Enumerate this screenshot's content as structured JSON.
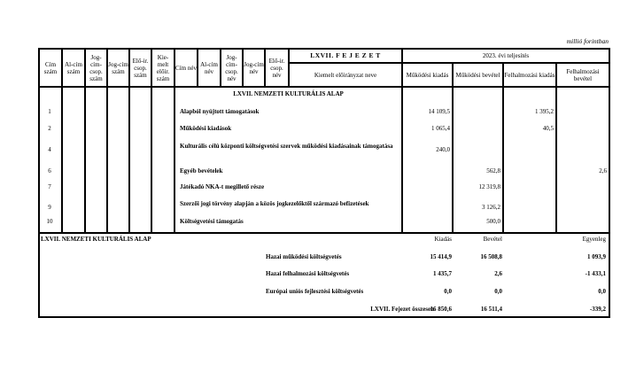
{
  "unit_note": "millió forintban",
  "header": {
    "chapter": "LXVII. F E J E Z E T",
    "period": "2023. évi teljesítés",
    "left_cols": [
      "Cím szám",
      "Al-cím szám",
      "Jog-cím-csop. szám",
      "Jog-cím szám",
      "Elő-ir. csop. szám",
      "Kie-melt előir. szám",
      "Cím név",
      "Al-cím név",
      "Jog-cím-csop. név",
      "Jog-cím név",
      "Elő-ir. csop. név"
    ],
    "name_col": "Kiemelt előirányzat neve",
    "value_cols": [
      "Működési kiadás",
      "Működési bevétel",
      "Felhalmozási kiadás",
      "Felhalmozási bevétel"
    ]
  },
  "section_title": "LXVII. NEMZETI KULTURÁLIS ALAP",
  "rows": [
    {
      "cim": "1",
      "name": "Alapból nyújtott támogatások",
      "mk": "14 109,5",
      "mb": "",
      "fk": "1 395,2",
      "fb": ""
    },
    {
      "cim": "2",
      "name": "Működési kiadások",
      "mk": "1 065,4",
      "mb": "",
      "fk": "40,5",
      "fb": ""
    },
    {
      "cim": "4",
      "name": "Kulturális célú központi költségvetési szervek működési kiadásainak támogatása",
      "mk": "240,0",
      "mb": "",
      "fk": "",
      "fb": ""
    },
    {
      "cim": "6",
      "name": "Egyéb bevételek",
      "mk": "",
      "mb": "562,8",
      "fk": "",
      "fb": "2,6"
    },
    {
      "cim": "7",
      "name": "Játékadó NKA-t megillető része",
      "mk": "",
      "mb": "12 319,8",
      "fk": "",
      "fb": ""
    },
    {
      "cim": "9",
      "name": "Szerzői jogi törvény alapján a közös jogkezelőktől származó befizetések",
      "mk": "",
      "mb": "3 126,2",
      "fk": "",
      "fb": ""
    },
    {
      "cim": "10",
      "name": "Költségvetési támogatás",
      "mk": "",
      "mb": "500,0",
      "fk": "",
      "fb": ""
    }
  ],
  "summary": {
    "title": "LXVII. NEMZETI KULTURÁLIS ALAP",
    "cols": [
      "Kiadás",
      "Bevétel",
      "Egyenleg"
    ],
    "rows": [
      {
        "label": "Hazai működési költségvetés",
        "values": [
          "15 414,9",
          "16 508,8",
          "1 093,9"
        ]
      },
      {
        "label": "Hazai felhalmozási költségvetés",
        "values": [
          "1 435,7",
          "2,6",
          "-1 433,1"
        ]
      },
      {
        "label": "Európai uniós fejlesztési költségvetés",
        "values": [
          "0,0",
          "0,0",
          "0,0"
        ]
      },
      {
        "label": "LXVII. Fejezet összesen",
        "values": [
          "16 850,6",
          "16 511,4",
          "-339,2"
        ]
      }
    ]
  }
}
